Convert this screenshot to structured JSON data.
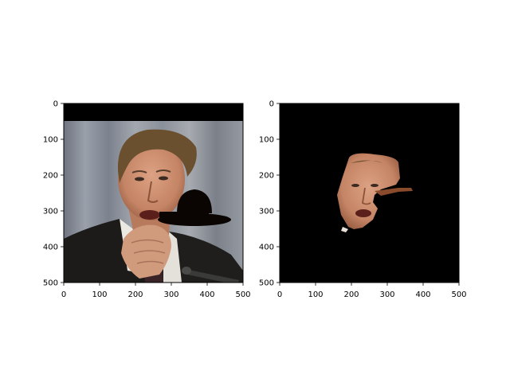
{
  "chart_data": [
    {
      "type": "image",
      "title": "",
      "xlabel": "",
      "ylabel": "",
      "xlim": [
        0,
        500
      ],
      "ylim": [
        500,
        0
      ],
      "xticks": [
        0,
        100,
        200,
        300,
        400,
        500
      ],
      "yticks": [
        0,
        100,
        200,
        300,
        400,
        500
      ],
      "xtick_labels": [
        "0",
        "100",
        "200",
        "300",
        "400",
        "500"
      ],
      "ytick_labels": [
        "0",
        "100",
        "200",
        "300",
        "400",
        "500"
      ],
      "grid": false,
      "content": "photo of a man in a suit with a black bowler hat overlay; black band at top",
      "colors": {
        "background_band": "#000000",
        "hat": "#0a0503",
        "suit": "#1c1b1a",
        "shirt": "#ece8e2"
      }
    },
    {
      "type": "image",
      "title": "",
      "xlabel": "",
      "ylabel": "",
      "xlim": [
        0,
        500
      ],
      "ylim": [
        500,
        0
      ],
      "xticks": [
        0,
        100,
        200,
        300,
        400,
        500
      ],
      "yticks": [
        0,
        100,
        200,
        300,
        400,
        500
      ],
      "xtick_labels": [
        "0",
        "100",
        "200",
        "300",
        "400",
        "500"
      ],
      "ytick_labels": [
        "0",
        "100",
        "200",
        "300",
        "400",
        "500"
      ],
      "grid": false,
      "content": "segmented face region on black background",
      "colors": {
        "background": "#000000",
        "skin": "#c98a68"
      }
    }
  ]
}
